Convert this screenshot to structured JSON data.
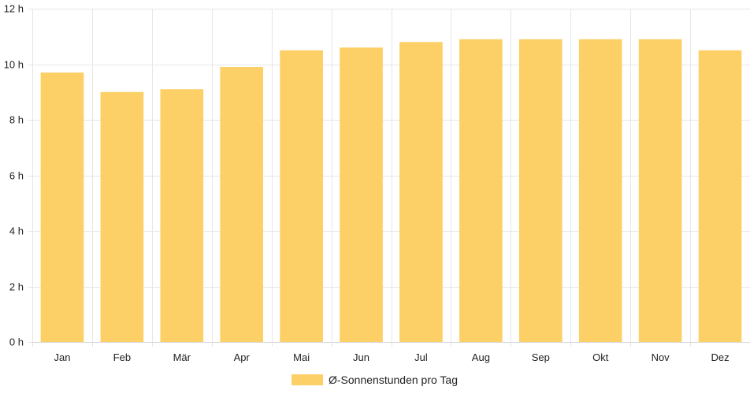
{
  "chart_data": {
    "type": "bar",
    "categories": [
      "Jan",
      "Feb",
      "Mär",
      "Apr",
      "Mai",
      "Jun",
      "Jul",
      "Aug",
      "Sep",
      "Okt",
      "Nov",
      "Dez"
    ],
    "series": [
      {
        "name": "Ø-Sonnenstunden pro Tag",
        "values": [
          9.7,
          9.0,
          9.1,
          9.9,
          10.5,
          10.6,
          10.8,
          10.9,
          10.9,
          10.9,
          10.9,
          10.5
        ]
      }
    ],
    "ylim": [
      0,
      12
    ],
    "yticks": [
      0,
      2,
      4,
      6,
      8,
      10,
      12
    ],
    "y_tick_suffix": " h",
    "grid": true,
    "legend_position": "bottom-center",
    "colors": {
      "bar": "#fdd067",
      "grid": "#e6e6e6",
      "text": "#222222"
    }
  }
}
